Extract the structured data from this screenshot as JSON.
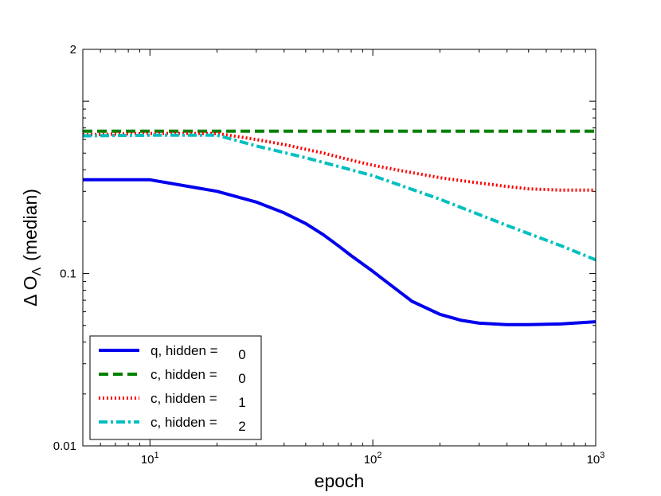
{
  "chart_data": {
    "type": "line",
    "xscale": "log",
    "yscale": "log",
    "xlim": [
      5,
      1000
    ],
    "ylim": [
      0.01,
      2
    ],
    "xlabel": "epoch",
    "ylabel": "Δ O",
    "ylabel_sub": "Λ",
    "ylabel_suffix": "(median)",
    "x_ticks": [
      {
        "value": 10,
        "base": "10",
        "exp": "1"
      },
      {
        "value": 100,
        "base": "10",
        "exp": "2"
      },
      {
        "value": 1000,
        "base": "10",
        "exp": "3"
      }
    ],
    "y_ticks": [
      {
        "value": 0.01,
        "label": "0.01"
      },
      {
        "value": 0.1,
        "label": "0.1"
      },
      {
        "value": 2,
        "label": "2"
      }
    ],
    "grid": false,
    "legend_position": "lower-left",
    "series": [
      {
        "name": "q, hidden =",
        "value": "0",
        "color": "#0000ee",
        "style": "solid",
        "x": [
          5,
          10,
          20,
          30,
          40,
          50,
          60,
          70,
          80,
          100,
          120,
          150,
          200,
          250,
          300,
          400,
          500,
          700,
          1000
        ],
        "y": [
          0.35,
          0.35,
          0.3,
          0.26,
          0.225,
          0.195,
          0.168,
          0.145,
          0.127,
          0.103,
          0.086,
          0.069,
          0.058,
          0.0535,
          0.0515,
          0.0505,
          0.0505,
          0.051,
          0.0525
        ]
      },
      {
        "name": "c, hidden =",
        "value": "0",
        "color": "#008000",
        "style": "dashed",
        "x": [
          5,
          1000
        ],
        "y": [
          0.67,
          0.67
        ]
      },
      {
        "name": "c, hidden =",
        "value": "1",
        "color": "#ff0000",
        "style": "dotted",
        "x": [
          5,
          10,
          20,
          30,
          40,
          60,
          80,
          100,
          150,
          200,
          300,
          400,
          500,
          700,
          1000
        ],
        "y": [
          0.64,
          0.65,
          0.65,
          0.6,
          0.56,
          0.5,
          0.455,
          0.425,
          0.385,
          0.36,
          0.335,
          0.32,
          0.31,
          0.305,
          0.305
        ]
      },
      {
        "name": "c, hidden =",
        "value": "2",
        "color": "#00bfbf",
        "style": "dashdot",
        "x": [
          5,
          10,
          20,
          30,
          50,
          100,
          200,
          400,
          700,
          1000
        ],
        "y": [
          0.63,
          0.635,
          0.635,
          0.55,
          0.47,
          0.37,
          0.27,
          0.19,
          0.145,
          0.12
        ]
      }
    ]
  }
}
